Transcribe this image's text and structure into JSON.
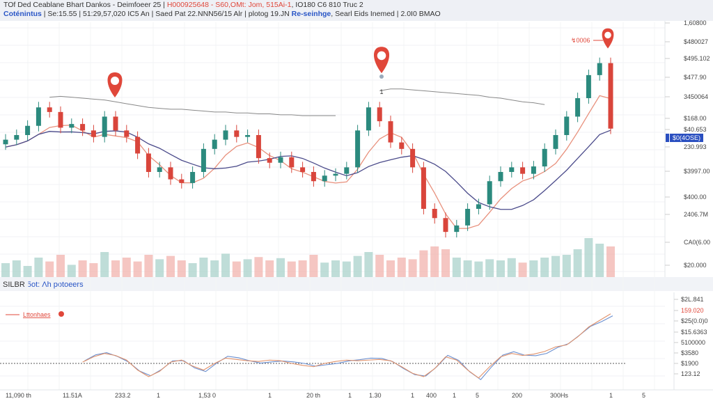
{
  "header": {
    "row1": {
      "title": "TOf Ded Ceablane Bhart Dankos - Deimfoeer 25",
      "sep": " | ",
      "symbol": "H000925648 - S60,OMt: Jom, 515Ai-1",
      "rest": ", IO180 C6 810 Truc 2"
    },
    "row2": {
      "name": "Coténintus",
      "stats": " | Se:15.55 | 51:29,57,020 IC5 An | Saed Pat 22.NNN56/15 Alr | plotog 19.JN ",
      "link": "Re-seinhge",
      "rest": ", Searl Eids Inemed | 2.0I0 BMAO"
    }
  },
  "lower_pane": {
    "title": "SILBR",
    "subtitle": "5ot: Λh potoeers",
    "legend": "Lttonhaes"
  },
  "markers": {
    "mid_label": "1",
    "right_label": "↯0006"
  },
  "colors": {
    "up": "#2b8a7e",
    "down": "#d9453b",
    "ma_fast": "#e8907c",
    "ma_slow": "#4a4a8a",
    "upper": "#888888",
    "tag": "#2a4fc0"
  },
  "chart_data": {
    "type": "candlestick",
    "title": "TOf Ded Ceablane Bhart Dankos - Deimfoeer 25",
    "ylim": [
      300,
      500
    ],
    "close": [
      375,
      380,
      390,
      410,
      405,
      388,
      392,
      385,
      378,
      400,
      385,
      378,
      360,
      340,
      345,
      332,
      328,
      340,
      365,
      375,
      385,
      378,
      380,
      355,
      350,
      356,
      345,
      340,
      330,
      336,
      338,
      345,
      385,
      410,
      395,
      372,
      365,
      345,
      300,
      290,
      275,
      282,
      300,
      305,
      330,
      340,
      345,
      338,
      346,
      365,
      380,
      400,
      420,
      445,
      458,
      387
    ],
    "wick": 6,
    "volume": [
      25,
      30,
      20,
      35,
      28,
      40,
      22,
      30,
      25,
      45,
      30,
      35,
      28,
      40,
      32,
      38,
      30,
      25,
      35,
      30,
      42,
      28,
      32,
      36,
      30,
      34,
      28,
      30,
      40,
      26,
      30,
      28,
      38,
      45,
      40,
      30,
      35,
      32,
      48,
      55,
      50,
      35,
      30,
      28,
      32,
      30,
      34,
      26,
      30,
      35,
      38,
      40,
      50,
      70,
      60,
      55
    ],
    "upper": [
      null,
      null,
      null,
      null,
      421,
      422,
      421,
      420,
      419,
      418,
      416,
      414,
      412,
      410,
      409,
      408,
      408,
      407,
      406,
      405,
      405,
      404,
      404,
      403,
      403,
      402,
      402,
      401,
      401,
      401,
      401,
      null,
      null,
      null,
      428,
      430,
      430,
      429,
      428,
      427,
      426,
      425,
      424,
      423,
      421,
      420,
      418,
      416,
      415,
      413,
      null,
      null,
      null,
      null,
      null,
      null
    ],
    "oscillator": [
      null,
      null,
      null,
      null,
      null,
      null,
      null,
      2,
      10,
      15,
      12,
      5,
      -10,
      -20,
      -12,
      2,
      5,
      -4,
      -10,
      0,
      8,
      6,
      4,
      3,
      5,
      4,
      0,
      -3,
      -5,
      0,
      3,
      5,
      4,
      5,
      6,
      4,
      -5,
      -15,
      -20,
      -8,
      10,
      5,
      -10,
      -22,
      -5,
      10,
      15,
      12,
      14,
      18,
      25,
      28,
      40,
      55,
      65,
      75
    ],
    "y_ticks_price": [
      "1,60800",
      "$480027",
      "$495.102",
      "$477.90",
      "3450064",
      "$168.00",
      "$40.653",
      "230.993",
      "$3997.00",
      "$400.00",
      "2406.7M",
      "CA0(6.00",
      "$20.000"
    ],
    "current_price": "$0(4OSE)",
    "y_ticks_osc": [
      "$2L.841",
      "159.020",
      "$25(0.0)0",
      "$15.6363",
      "5100000",
      "$3580",
      "$1900",
      "123.12"
    ],
    "x_ticks": [
      "11,090 th",
      "11.51A",
      "233.2",
      "1",
      "1,53 0",
      "1",
      "20 th",
      "1",
      "1.30",
      "1",
      "400",
      "1",
      "5",
      "200",
      "300Hs",
      "1",
      "5"
    ]
  }
}
